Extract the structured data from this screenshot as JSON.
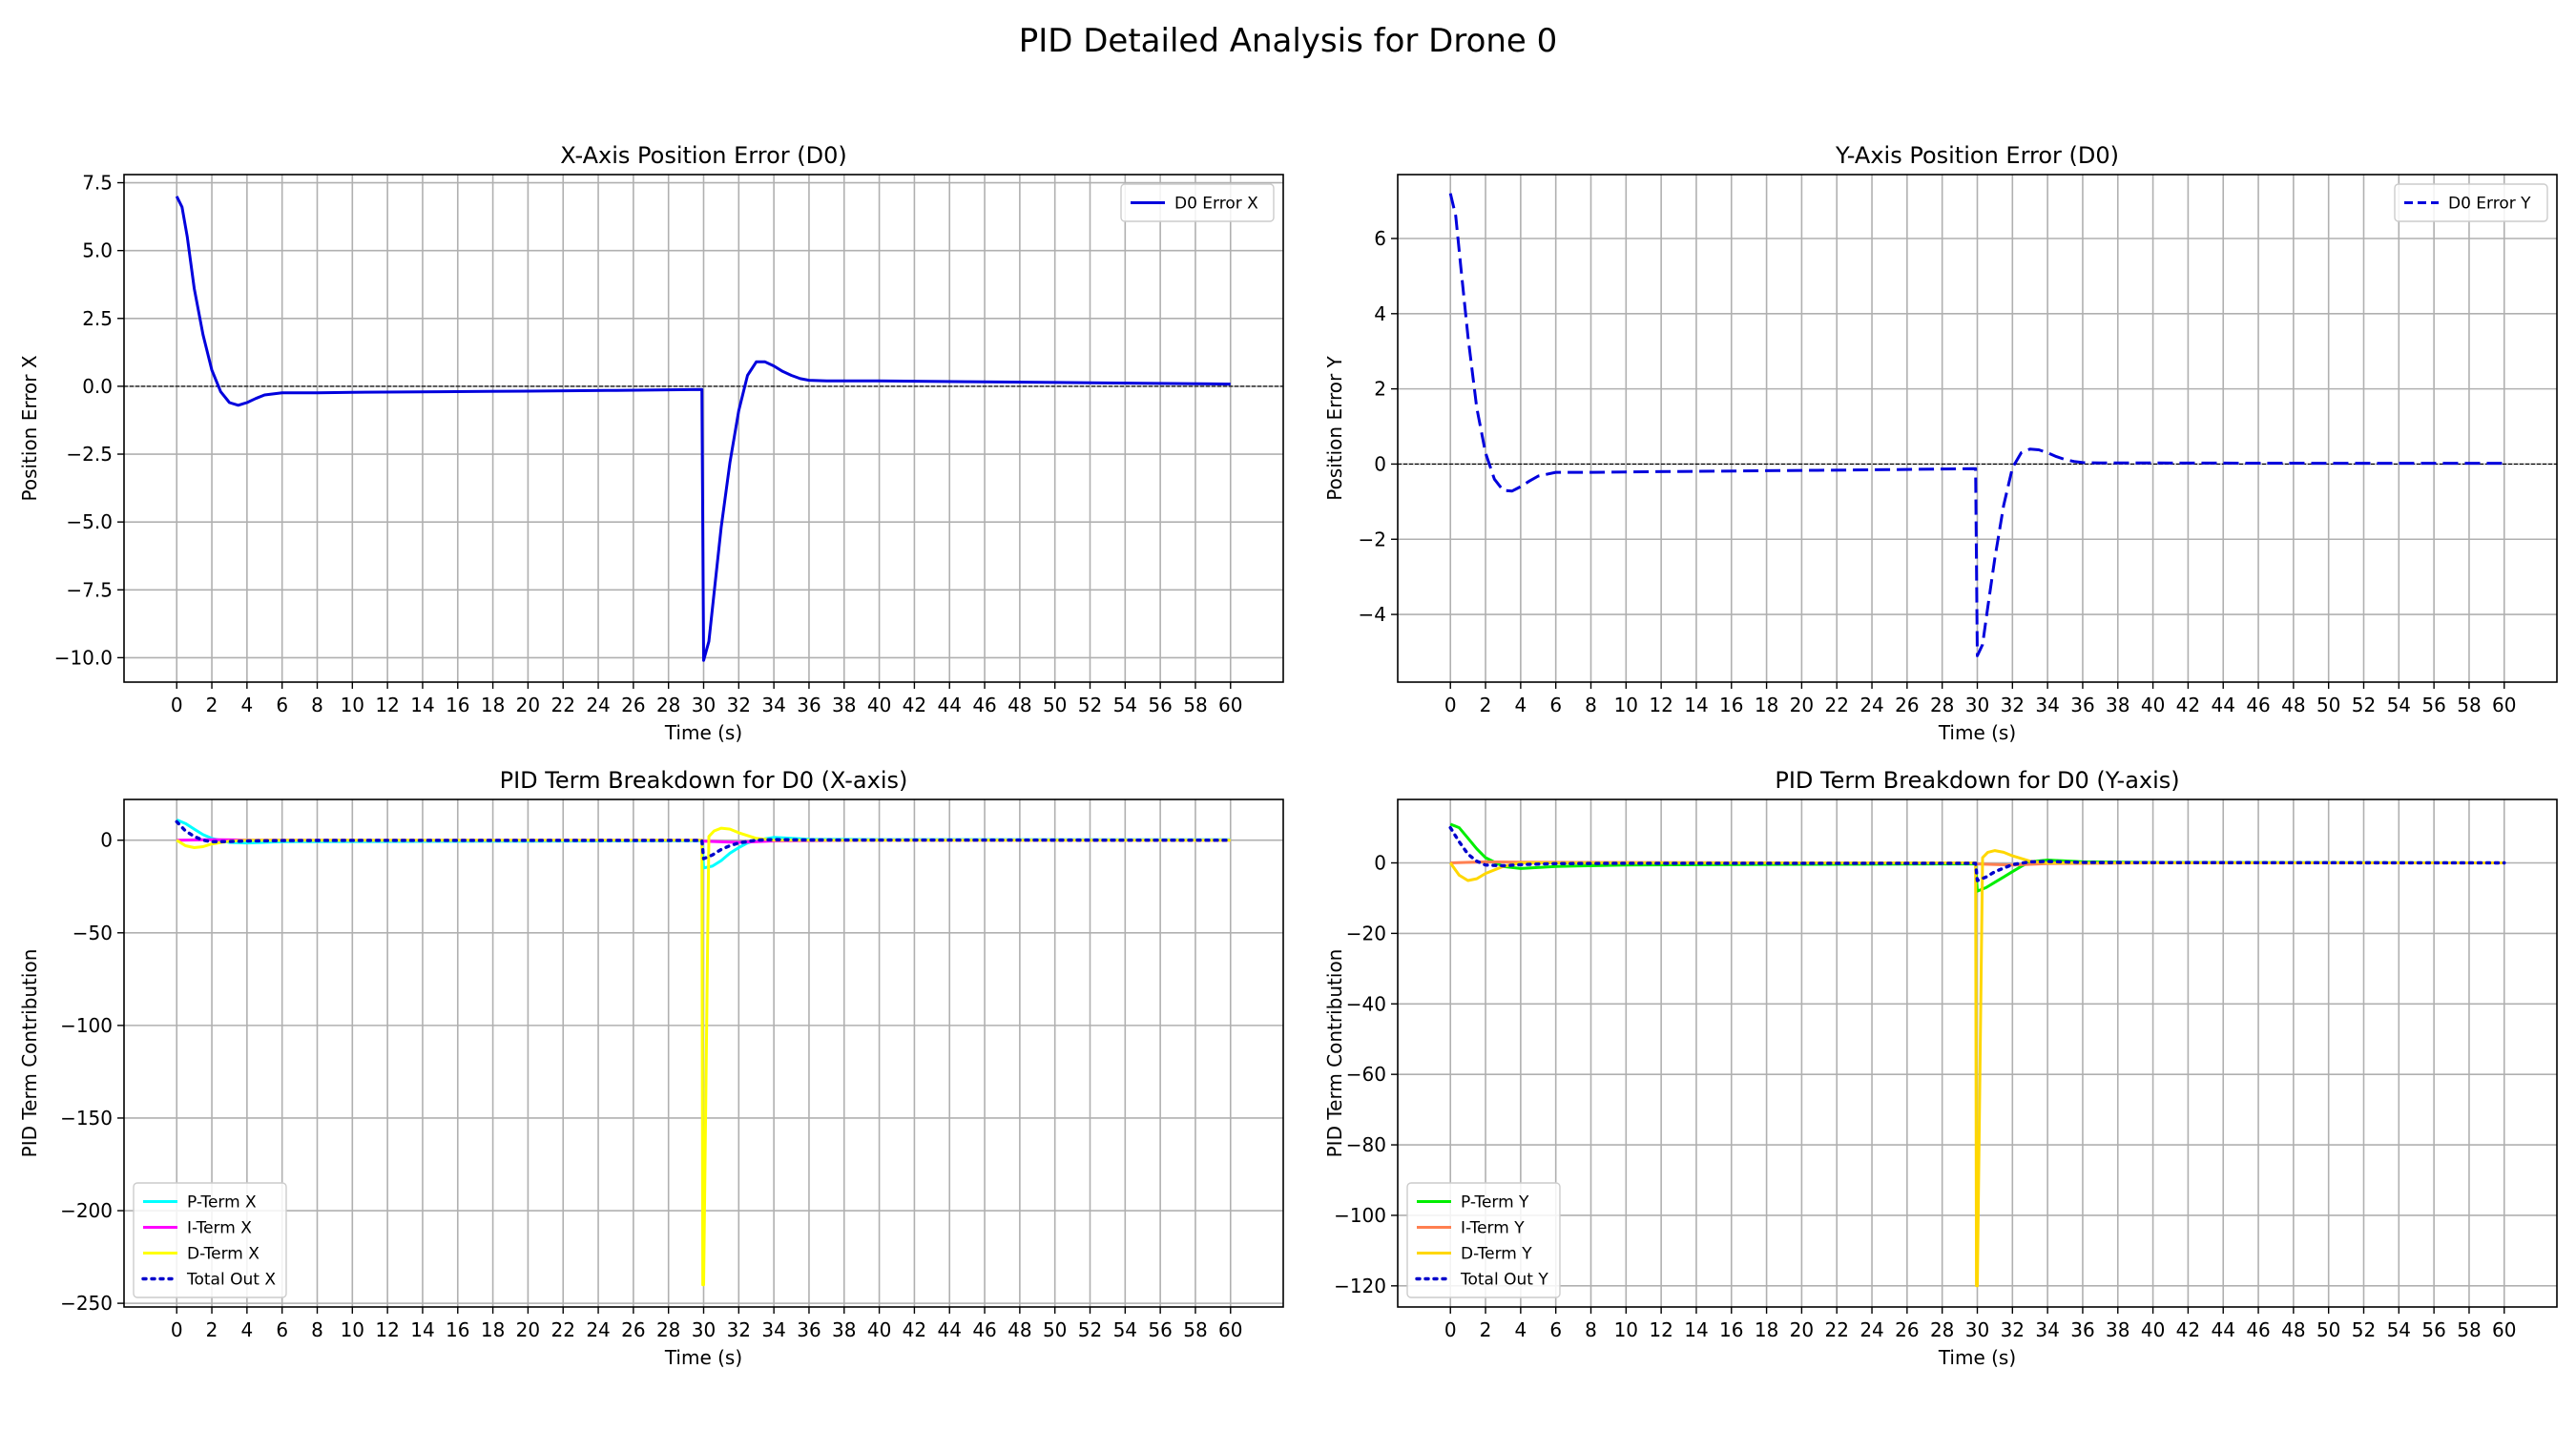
{
  "figure": {
    "suptitle": "PID Detailed Analysis for Drone 0"
  },
  "chart_data": [
    {
      "type": "line",
      "title": "X-Axis Position Error (D0)",
      "xlabel": "Time (s)",
      "ylabel": "Position Error X",
      "xlim": [
        -3,
        63
      ],
      "ylim": [
        -10.9,
        7.8
      ],
      "xticks": [
        0,
        2,
        4,
        6,
        8,
        10,
        12,
        14,
        16,
        18,
        20,
        22,
        24,
        26,
        28,
        30,
        32,
        34,
        36,
        38,
        40,
        42,
        44,
        46,
        48,
        50,
        52,
        54,
        56,
        58,
        60
      ],
      "yticks": [
        -10.0,
        -7.5,
        -5.0,
        -2.5,
        0.0,
        2.5,
        5.0,
        7.5
      ],
      "ytick_labels": [
        "−10.0",
        "−7.5",
        "−5.0",
        "−2.5",
        "0.0",
        "2.5",
        "5.0",
        "7.5"
      ],
      "grid": true,
      "zero_line": true,
      "legend_position": "upper-right",
      "series": [
        {
          "name": "D0 Error X",
          "color": "#0000dd",
          "style": "solid",
          "x": [
            0,
            0.3,
            0.6,
            1,
            1.5,
            2,
            2.5,
            3,
            3.5,
            4,
            4.5,
            5,
            6,
            8,
            10,
            15,
            20,
            25,
            29.9,
            30,
            30.3,
            30.6,
            31,
            31.5,
            32,
            32.5,
            33,
            33.5,
            34,
            34.5,
            35,
            35.5,
            36,
            37,
            38,
            40,
            45,
            50,
            55,
            60
          ],
          "y": [
            7.0,
            6.6,
            5.5,
            3.6,
            1.9,
            0.6,
            -0.2,
            -0.6,
            -0.7,
            -0.6,
            -0.45,
            -0.32,
            -0.24,
            -0.24,
            -0.22,
            -0.2,
            -0.18,
            -0.15,
            -0.12,
            -10.1,
            -9.4,
            -7.6,
            -5.2,
            -2.8,
            -0.9,
            0.4,
            0.9,
            0.9,
            0.75,
            0.55,
            0.4,
            0.28,
            0.22,
            0.2,
            0.2,
            0.2,
            0.17,
            0.14,
            0.11,
            0.08
          ]
        }
      ]
    },
    {
      "type": "line",
      "title": "Y-Axis Position Error (D0)",
      "xlabel": "Time (s)",
      "ylabel": "Position Error Y",
      "xlim": [
        -3,
        63
      ],
      "ylim": [
        -5.8,
        7.7
      ],
      "xticks": [
        0,
        2,
        4,
        6,
        8,
        10,
        12,
        14,
        16,
        18,
        20,
        22,
        24,
        26,
        28,
        30,
        32,
        34,
        36,
        38,
        40,
        42,
        44,
        46,
        48,
        50,
        52,
        54,
        56,
        58,
        60
      ],
      "yticks": [
        -4,
        -2,
        0,
        2,
        4,
        6
      ],
      "ytick_labels": [
        "−4",
        "−2",
        "0",
        "2",
        "4",
        "6"
      ],
      "grid": true,
      "zero_line": true,
      "legend_position": "upper-right",
      "series": [
        {
          "name": "D0 Error Y",
          "color": "#0000dd",
          "style": "dashed",
          "x": [
            0,
            0.3,
            0.6,
            1,
            1.5,
            2,
            2.5,
            3,
            3.5,
            4,
            4.5,
            5,
            6,
            8,
            10,
            15,
            20,
            25,
            29.9,
            30,
            30.3,
            30.6,
            31,
            31.5,
            32,
            32.5,
            33,
            33.5,
            34,
            34.5,
            35,
            35.5,
            36,
            37,
            40,
            50,
            60
          ],
          "y": [
            7.2,
            6.6,
            5.2,
            3.4,
            1.5,
            0.3,
            -0.4,
            -0.7,
            -0.72,
            -0.6,
            -0.45,
            -0.32,
            -0.22,
            -0.22,
            -0.21,
            -0.19,
            -0.17,
            -0.15,
            -0.12,
            -5.1,
            -4.8,
            -3.8,
            -2.5,
            -1.1,
            -0.1,
            0.3,
            0.4,
            0.38,
            0.3,
            0.2,
            0.12,
            0.07,
            0.04,
            0.03,
            0.03,
            0.02,
            0.02
          ]
        }
      ]
    },
    {
      "type": "line",
      "title": "PID Term Breakdown for D0 (X-axis)",
      "xlabel": "Time (s)",
      "ylabel": "PID Term Contribution",
      "xlim": [
        -3,
        63
      ],
      "ylim": [
        -252,
        22
      ],
      "xticks": [
        0,
        2,
        4,
        6,
        8,
        10,
        12,
        14,
        16,
        18,
        20,
        22,
        24,
        26,
        28,
        30,
        32,
        34,
        36,
        38,
        40,
        42,
        44,
        46,
        48,
        50,
        52,
        54,
        56,
        58,
        60
      ],
      "yticks": [
        -250,
        -200,
        -150,
        -100,
        -50,
        0
      ],
      "ytick_labels": [
        "−250",
        "−200",
        "−150",
        "−100",
        "−50",
        "0"
      ],
      "grid": true,
      "legend_position": "lower-left",
      "series": [
        {
          "name": "P-Term X",
          "color": "#00ffff",
          "style": "solid",
          "x": [
            0,
            0.5,
            1,
            1.5,
            2,
            3,
            4,
            6,
            10,
            20,
            29.9,
            30,
            30.5,
            31,
            31.5,
            32,
            32.5,
            33,
            34,
            36,
            40,
            60
          ],
          "y": [
            11,
            9,
            6,
            3,
            1,
            -1.2,
            -1.5,
            -0.8,
            -0.7,
            -0.5,
            -0.3,
            -15,
            -14,
            -11,
            -7,
            -4,
            -1.5,
            0,
            1.5,
            0.5,
            0.3,
            0.2
          ]
        },
        {
          "name": "I-Term X",
          "color": "#ff00ff",
          "style": "solid",
          "x": [
            0,
            2,
            4,
            10,
            20,
            29.9,
            30,
            32,
            34,
            40,
            60
          ],
          "y": [
            0,
            0.3,
            0.1,
            0,
            0,
            0,
            -0.5,
            -1.2,
            -0.4,
            0,
            0
          ]
        },
        {
          "name": "D-Term X",
          "color": "#ffff00",
          "style": "solid",
          "x": [
            0,
            0.5,
            1,
            1.5,
            2,
            3,
            4,
            6,
            10,
            20,
            29.9,
            29.95,
            30,
            30.3,
            30.6,
            31,
            31.5,
            32,
            33,
            34,
            36,
            60
          ],
          "y": [
            0,
            -3,
            -4,
            -3.5,
            -2,
            -0.5,
            0,
            0,
            0,
            0,
            0,
            -240,
            -240,
            2,
            5,
            6.5,
            6,
            4,
            1,
            0,
            0,
            0
          ]
        },
        {
          "name": "Total Out X",
          "color": "#0000cc",
          "style": "dotted",
          "x": [
            0,
            0.5,
            1,
            1.5,
            2,
            3,
            4,
            6,
            10,
            20,
            29.9,
            30,
            30.5,
            31,
            31.5,
            32,
            33,
            34,
            36,
            60
          ],
          "y": [
            10,
            5,
            2,
            0,
            -0.8,
            -0.7,
            -0.4,
            -0.2,
            -0.1,
            -0.1,
            -0.1,
            -10,
            -8,
            -5,
            -3,
            -1.5,
            0,
            0.3,
            0.1,
            0
          ]
        }
      ]
    },
    {
      "type": "line",
      "title": "PID Term Breakdown for D0 (Y-axis)",
      "xlabel": "Time (s)",
      "ylabel": "PID Term Contribution",
      "xlim": [
        -3,
        63
      ],
      "ylim": [
        -126,
        18
      ],
      "xticks": [
        0,
        2,
        4,
        6,
        8,
        10,
        12,
        14,
        16,
        18,
        20,
        22,
        24,
        26,
        28,
        30,
        32,
        34,
        36,
        38,
        40,
        42,
        44,
        46,
        48,
        50,
        52,
        54,
        56,
        58,
        60
      ],
      "yticks": [
        -120,
        -100,
        -80,
        -60,
        -40,
        -20,
        0
      ],
      "ytick_labels": [
        "−120",
        "−100",
        "−80",
        "−60",
        "−40",
        "−20",
        "0"
      ],
      "grid": true,
      "legend_position": "lower-left",
      "series": [
        {
          "name": "P-Term Y",
          "color": "#00ee00",
          "style": "solid",
          "x": [
            0,
            0.5,
            1,
            1.5,
            2,
            3,
            4,
            6,
            10,
            20,
            29.9,
            30,
            30.5,
            31,
            31.5,
            32,
            32.5,
            33,
            34,
            36,
            40,
            60
          ],
          "y": [
            11,
            10,
            7,
            4,
            1.5,
            -1,
            -1.6,
            -1,
            -0.6,
            -0.4,
            -0.3,
            -8,
            -7,
            -5.5,
            -4,
            -2.5,
            -1,
            0.3,
            0.8,
            0.3,
            0.1,
            0
          ]
        },
        {
          "name": "I-Term Y",
          "color": "#ff7f50",
          "style": "solid",
          "x": [
            0,
            2,
            4,
            10,
            20,
            29.9,
            30,
            32,
            34,
            40,
            60
          ],
          "y": [
            0,
            0.3,
            0.2,
            0.1,
            0,
            0,
            -0.3,
            -0.6,
            -0.2,
            0,
            0
          ]
        },
        {
          "name": "D-Term Y",
          "color": "#ffd700",
          "style": "solid",
          "x": [
            0,
            0.5,
            1,
            1.5,
            2,
            3,
            4,
            6,
            10,
            20,
            29.9,
            29.95,
            30,
            30.3,
            30.6,
            31,
            31.5,
            32,
            33,
            34,
            36,
            60
          ],
          "y": [
            0,
            -3.5,
            -5,
            -4.5,
            -3,
            -1,
            0,
            0,
            0,
            0,
            0,
            -120,
            -120,
            1.5,
            3,
            3.5,
            3,
            2,
            0.5,
            0,
            0,
            0
          ]
        },
        {
          "name": "Total Out Y",
          "color": "#0000cc",
          "style": "dotted",
          "x": [
            0,
            0.5,
            1,
            1.5,
            2,
            3,
            4,
            6,
            10,
            20,
            29.9,
            30,
            30.5,
            31,
            31.5,
            32,
            33,
            34,
            36,
            60
          ],
          "y": [
            10,
            6,
            2.5,
            0.5,
            -0.6,
            -0.8,
            -0.5,
            -0.2,
            -0.1,
            -0.1,
            -0.1,
            -5,
            -4,
            -2.5,
            -1.5,
            -0.5,
            0.3,
            0.4,
            0.1,
            0
          ]
        }
      ]
    }
  ]
}
